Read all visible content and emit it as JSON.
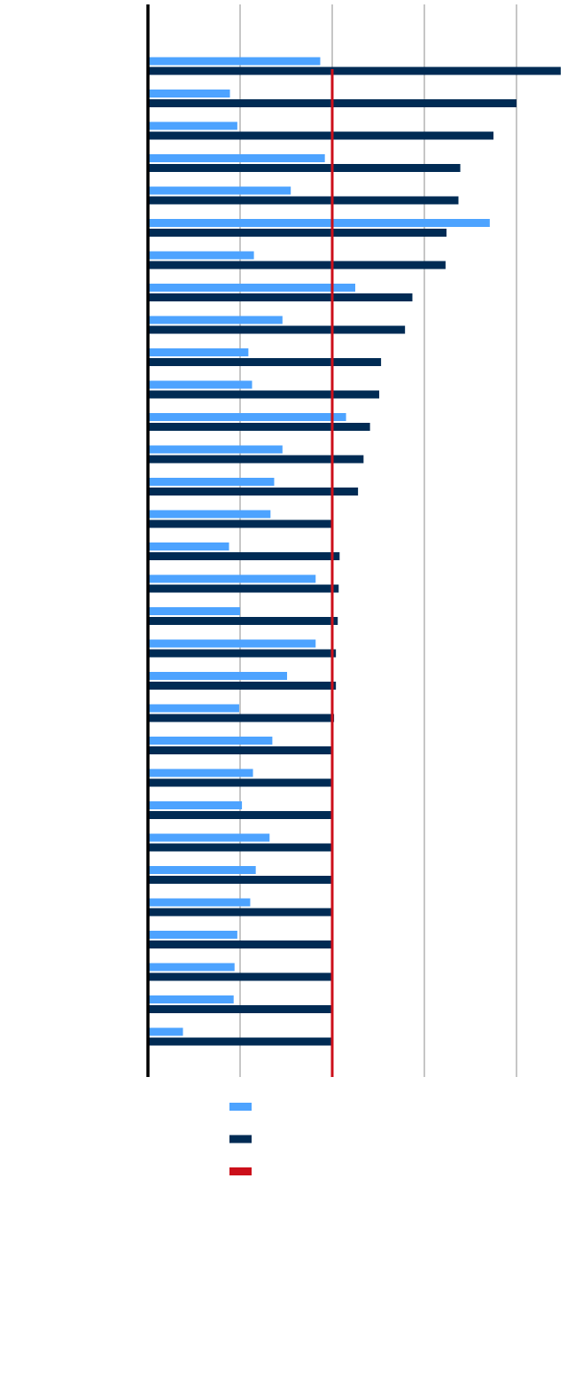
{
  "chart_data": {
    "type": "hbar",
    "categories": [
      null,
      null,
      null,
      null,
      null,
      null,
      null,
      null,
      null,
      null,
      null,
      null,
      null,
      null,
      null,
      null,
      null,
      null,
      null,
      null,
      null,
      null,
      null,
      null,
      null,
      null,
      null,
      null,
      null,
      null,
      null
    ],
    "series": [
      {
        "color": "#4da3ff",
        "values": [
          1.87,
          0.89,
          0.97,
          1.92,
          1.55,
          3.71,
          1.15,
          2.25,
          1.46,
          1.09,
          1.13,
          2.15,
          1.46,
          1.37,
          1.33,
          0.88,
          1.82,
          1.0,
          1.82,
          1.51,
          0.99,
          1.35,
          1.14,
          1.02,
          1.32,
          1.17,
          1.11,
          0.97,
          0.94,
          0.93,
          0.38
        ]
      },
      {
        "color": "#002b54",
        "values": [
          4.48,
          4.0,
          3.75,
          3.39,
          3.37,
          3.24,
          3.23,
          2.87,
          2.79,
          2.53,
          2.51,
          2.41,
          2.34,
          2.28,
          1.99,
          2.08,
          2.07,
          2.06,
          2.04,
          2.04,
          2.02,
          1.99,
          1.99,
          1.99,
          1.99,
          1.99,
          1.99,
          1.99,
          1.99,
          1.99,
          1.99
        ]
      }
    ],
    "reference": {
      "value": 2,
      "color": "#cc0f1a"
    },
    "xlim": [
      0,
      4.5
    ],
    "xticks": [
      0,
      1,
      2,
      3,
      4
    ],
    "grid": true
  }
}
